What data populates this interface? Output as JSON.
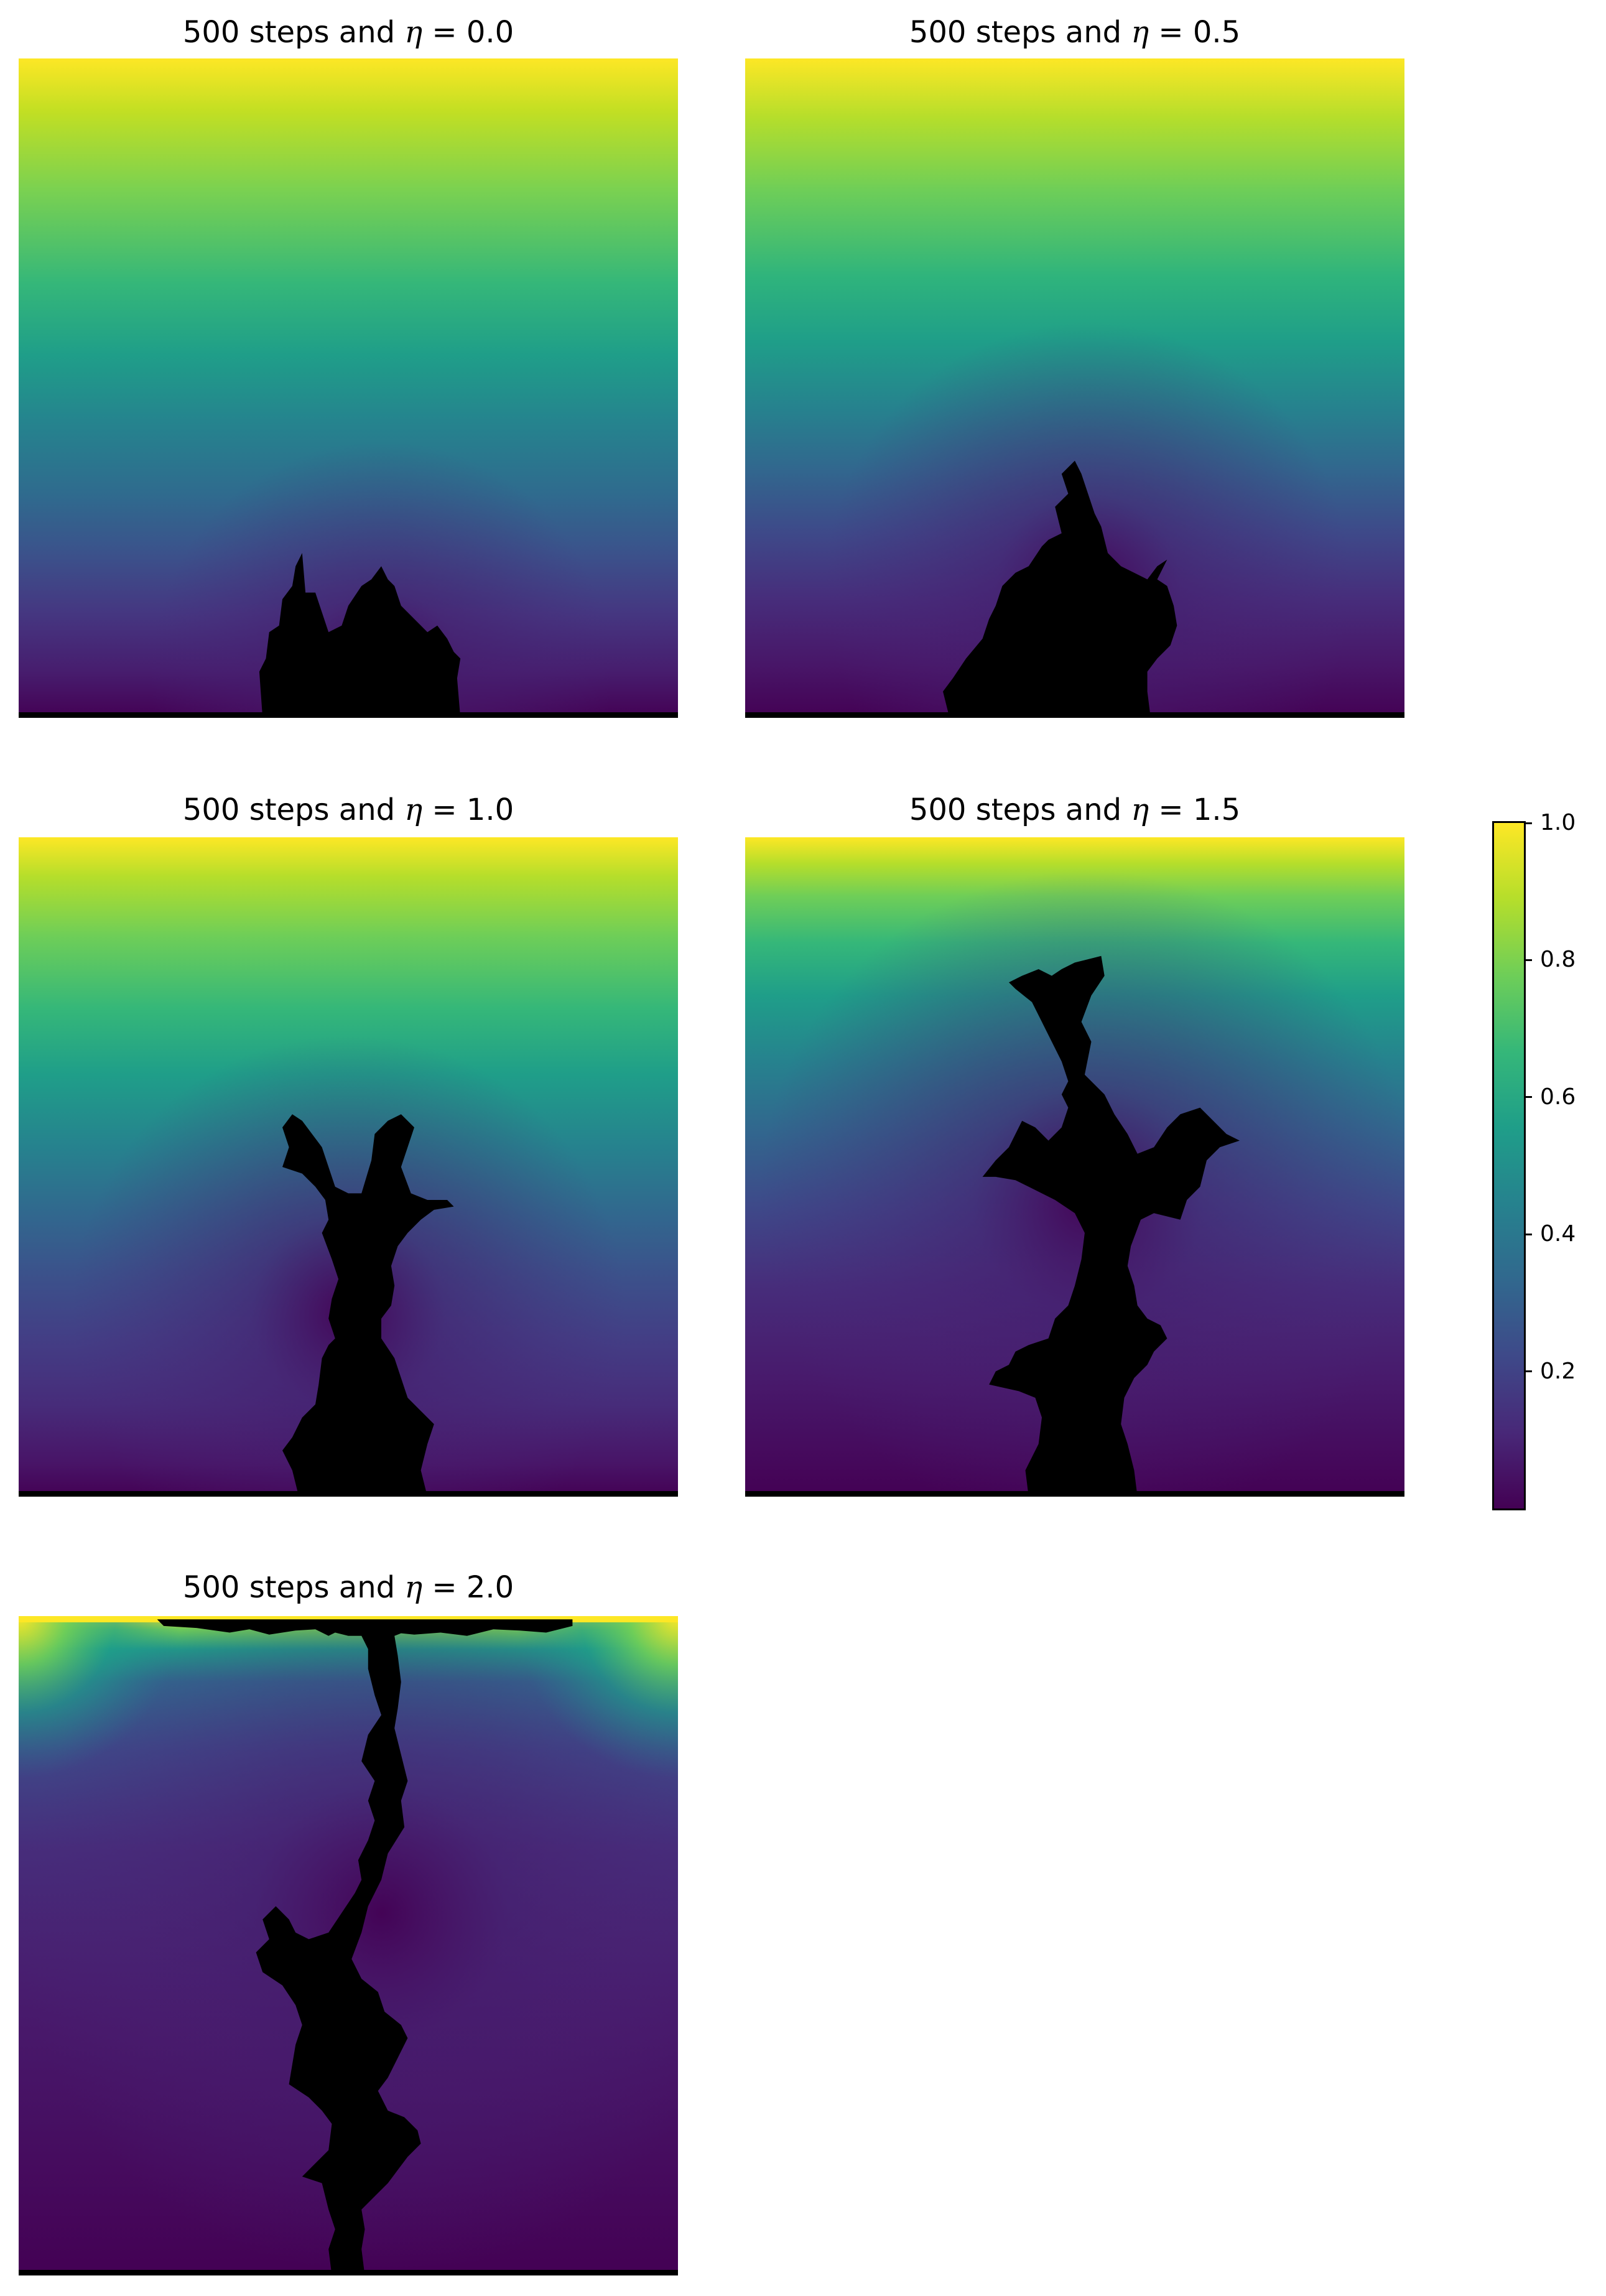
{
  "chart_data": {
    "type": "heatmap",
    "colormap": "viridis",
    "grid": false,
    "panels": [
      {
        "title_prefix": "500 steps and ",
        "eta_symbol": "η",
        "title_suffix": " = 0.0",
        "eta": 0.0
      },
      {
        "title_prefix": "500 steps and ",
        "eta_symbol": "η",
        "title_suffix": " = 0.5",
        "eta": 0.5
      },
      {
        "title_prefix": "500 steps and ",
        "eta_symbol": "η",
        "title_suffix": " = 1.0",
        "eta": 1.0
      },
      {
        "title_prefix": "500 steps and ",
        "eta_symbol": "η",
        "title_suffix": " = 1.5",
        "eta": 1.5
      },
      {
        "title_prefix": "500 steps and ",
        "eta_symbol": "η",
        "title_suffix": " = 2.0",
        "eta": 2.0
      }
    ],
    "colorbar": {
      "range": [
        0,
        1
      ],
      "ticks": [
        1.0,
        0.8,
        0.6,
        0.4,
        0.2
      ],
      "tick_labels": [
        "1.0",
        "0.8",
        "0.6",
        "0.4",
        "0.2"
      ]
    }
  }
}
